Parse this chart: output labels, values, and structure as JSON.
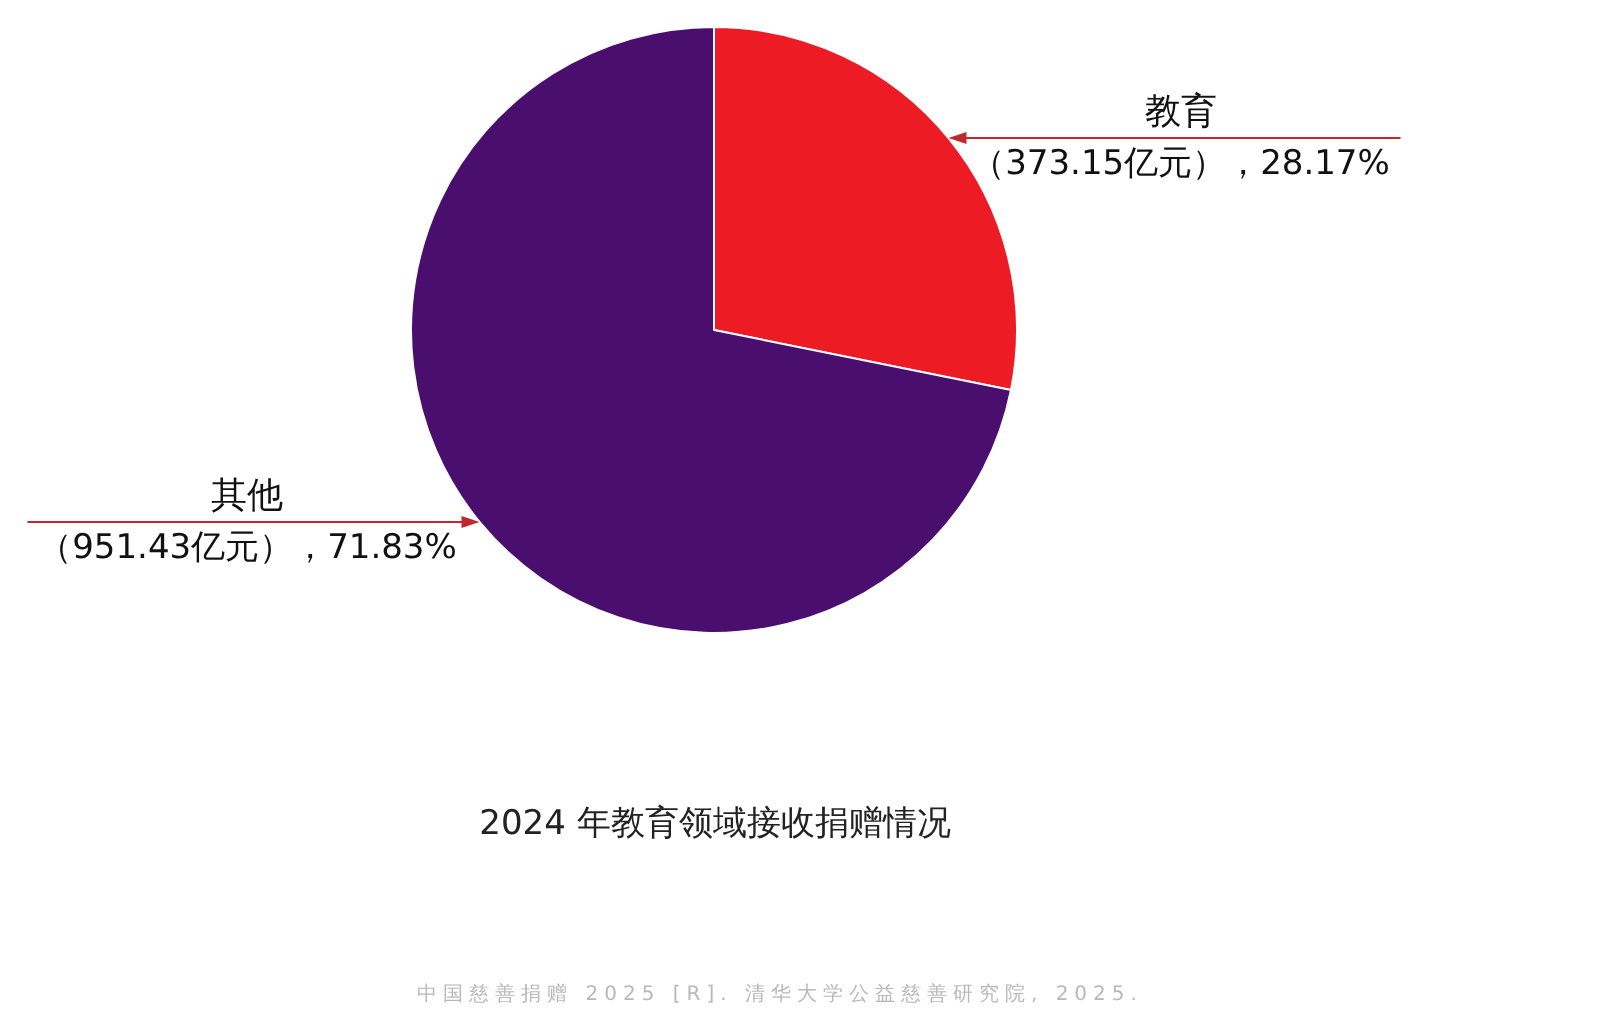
{
  "chart_data": {
    "type": "pie",
    "title": "2024 年教育领域接收捐赠情况",
    "categories": [
      "教育",
      "其他"
    ],
    "values": [
      373.15,
      951.43
    ],
    "colors": [
      "#ed1c24",
      "#4a0e6e"
    ],
    "value_labels": [
      "（373.15亿元），28.17%",
      "（951.43亿元），71.83%"
    ],
    "annotations": [
      "中国慈善捐赠 2025 [R]. 清华大学公益慈善研究院, 2025."
    ],
    "legend": false
  }
}
